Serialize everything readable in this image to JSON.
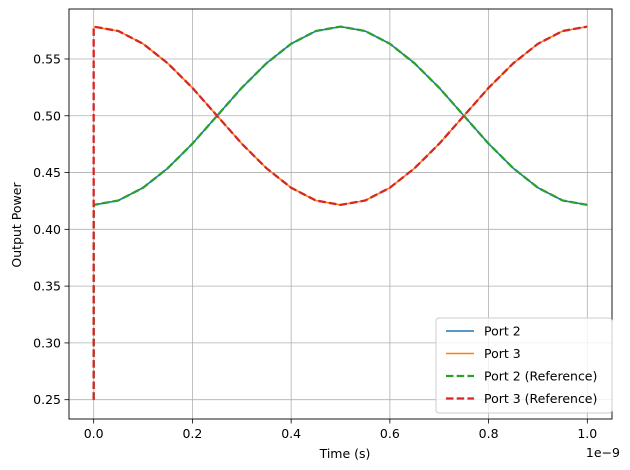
{
  "chart_data": {
    "type": "line",
    "title": "",
    "xlabel": "Time (s)",
    "ylabel": "Output Power",
    "x_offset_label": "1e−9",
    "xlim": [
      -0.05,
      1.05
    ],
    "ylim": [
      0.233,
      0.594
    ],
    "x_ticks": [
      {
        "value": 0.0,
        "label": "0.0"
      },
      {
        "value": 0.2,
        "label": "0.2"
      },
      {
        "value": 0.4,
        "label": "0.4"
      },
      {
        "value": 0.6,
        "label": "0.6"
      },
      {
        "value": 0.8,
        "label": "0.8"
      },
      {
        "value": 1.0,
        "label": "1.0"
      }
    ],
    "y_ticks": [
      {
        "value": 0.25,
        "label": "0.25"
      },
      {
        "value": 0.3,
        "label": "0.30"
      },
      {
        "value": 0.35,
        "label": "0.35"
      },
      {
        "value": 0.4,
        "label": "0.40"
      },
      {
        "value": 0.45,
        "label": "0.45"
      },
      {
        "value": 0.5,
        "label": "0.50"
      },
      {
        "value": 0.55,
        "label": "0.55"
      }
    ],
    "grid": true,
    "legend_position": "lower-right",
    "series": [
      {
        "name": "Port 2",
        "color": "#1f77b4",
        "style": "solid",
        "x": [
          0.0,
          0.05,
          0.1,
          0.15,
          0.2,
          0.25,
          0.3,
          0.35,
          0.4,
          0.45,
          0.5,
          0.55,
          0.6,
          0.65,
          0.7,
          0.75,
          0.8,
          0.85,
          0.9,
          0.95,
          1.0
        ],
        "y": [
          0.4215,
          0.4254,
          0.4366,
          0.4538,
          0.4754,
          0.5,
          0.5246,
          0.5462,
          0.5634,
          0.5746,
          0.5785,
          0.5746,
          0.5634,
          0.5462,
          0.5246,
          0.5,
          0.4754,
          0.4538,
          0.4366,
          0.4254,
          0.4215
        ]
      },
      {
        "name": "Port 3",
        "color": "#ff7f0e",
        "style": "solid",
        "x": [
          0.0,
          0.05,
          0.1,
          0.15,
          0.2,
          0.25,
          0.3,
          0.35,
          0.4,
          0.45,
          0.5,
          0.55,
          0.6,
          0.65,
          0.7,
          0.75,
          0.8,
          0.85,
          0.9,
          0.95,
          1.0
        ],
        "y": [
          0.5785,
          0.5746,
          0.5634,
          0.5462,
          0.5246,
          0.5,
          0.4754,
          0.4538,
          0.4366,
          0.4254,
          0.4215,
          0.4254,
          0.4366,
          0.4538,
          0.4754,
          0.5,
          0.5246,
          0.5462,
          0.5634,
          0.5746,
          0.5785
        ]
      },
      {
        "name": "Port 2 (Reference)",
        "color": "#2ca02c",
        "style": "dashed",
        "x": [
          0.0,
          0.0,
          0.05,
          0.1,
          0.15,
          0.2,
          0.25,
          0.3,
          0.35,
          0.4,
          0.45,
          0.5,
          0.55,
          0.6,
          0.65,
          0.7,
          0.75,
          0.8,
          0.85,
          0.9,
          0.95,
          1.0
        ],
        "y": [
          0.25,
          0.4215,
          0.4254,
          0.4366,
          0.4538,
          0.4754,
          0.5,
          0.5246,
          0.5462,
          0.5634,
          0.5746,
          0.5785,
          0.5746,
          0.5634,
          0.5462,
          0.5246,
          0.5,
          0.4754,
          0.4538,
          0.4366,
          0.4254,
          0.4215
        ]
      },
      {
        "name": "Port 3 (Reference)",
        "color": "#d62728",
        "style": "dashed",
        "x": [
          0.0,
          0.0,
          0.05,
          0.1,
          0.15,
          0.2,
          0.25,
          0.3,
          0.35,
          0.4,
          0.45,
          0.5,
          0.55,
          0.6,
          0.65,
          0.7,
          0.75,
          0.8,
          0.85,
          0.9,
          0.95,
          1.0
        ],
        "y": [
          0.25,
          0.5785,
          0.5746,
          0.5634,
          0.5462,
          0.5246,
          0.5,
          0.4754,
          0.4538,
          0.4366,
          0.4254,
          0.4215,
          0.4254,
          0.4366,
          0.4538,
          0.4754,
          0.5,
          0.5246,
          0.5462,
          0.5634,
          0.5746,
          0.5785
        ]
      }
    ]
  }
}
